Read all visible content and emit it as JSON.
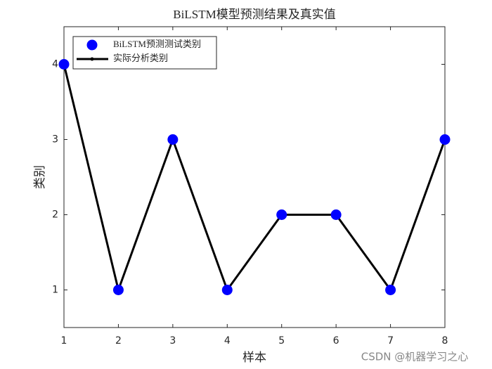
{
  "chart_data": {
    "type": "line",
    "title": "BiLSTM模型预测结果及真实值",
    "x_label": "样本",
    "y_label": "类别",
    "x": [
      1,
      2,
      3,
      4,
      5,
      6,
      7,
      8
    ],
    "series": [
      {
        "name": "BiLSTM预测测试类别",
        "color": "#0000ff",
        "mode": "markers",
        "values": [
          4,
          1,
          3,
          1,
          2,
          2,
          1,
          3
        ]
      },
      {
        "name": "实际分析类别",
        "color": "#000000",
        "mode": "lines",
        "values": [
          4,
          1,
          3,
          1,
          2,
          2,
          1,
          3
        ]
      }
    ],
    "xlim": [
      1,
      8
    ],
    "xticks": [
      1,
      2,
      3,
      4,
      5,
      6,
      7,
      8
    ],
    "ylim": [
      0.5,
      4.5
    ],
    "yticks": [
      1,
      2,
      3,
      4
    ],
    "grid": false,
    "legend": "northwest",
    "watermark": "CSDN @机器学习之心"
  }
}
